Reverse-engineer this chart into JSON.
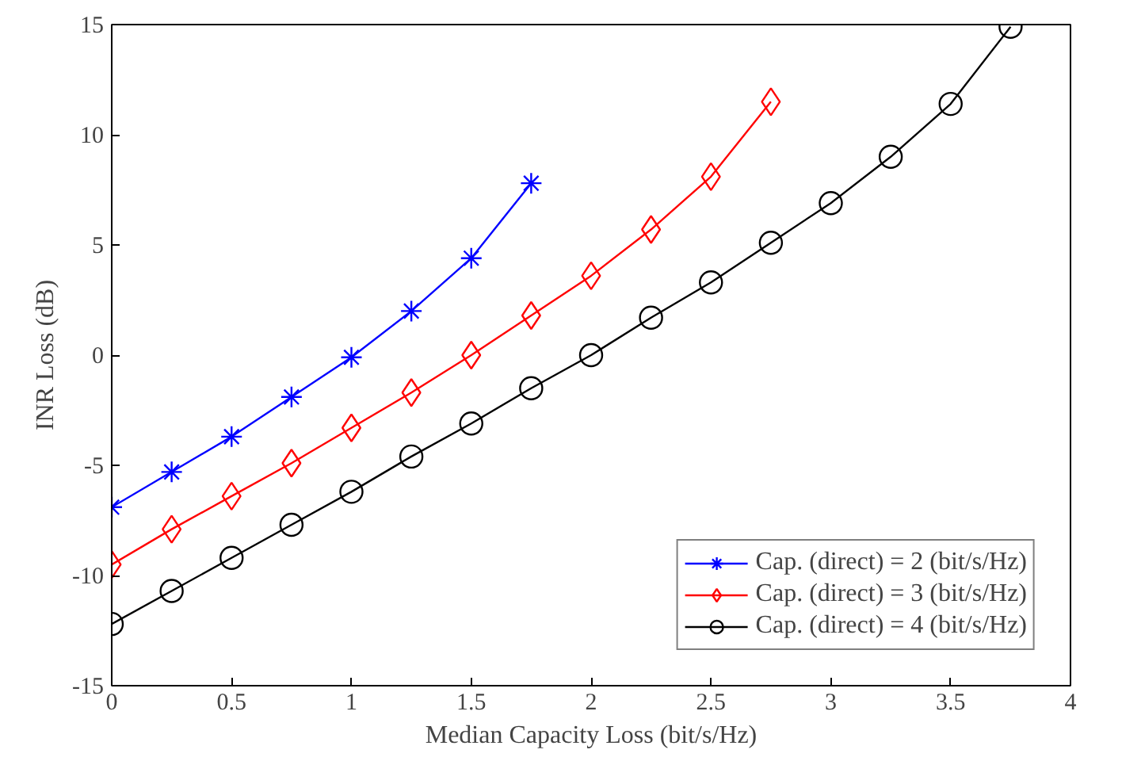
{
  "chart_data": {
    "type": "line",
    "xlabel": "Median Capacity Loss (bit/s/Hz)",
    "ylabel": "INR Loss (dB)",
    "xlim": [
      0,
      4
    ],
    "xticks": [
      0,
      0.5,
      1,
      1.5,
      2,
      2.5,
      3,
      3.5,
      4
    ],
    "ylim": [
      -15,
      15
    ],
    "yticks": [
      -15,
      -10,
      -5,
      0,
      5,
      10,
      15
    ],
    "grid": false,
    "legend": "bottom right",
    "line_style": "solid",
    "series": [
      {
        "name": "Cap. (direct) = 2 (bit/s/Hz)",
        "color": "#0000ff",
        "marker": "cross",
        "x": [
          0,
          0.25,
          0.5,
          0.75,
          1,
          1.25,
          1.5,
          1.75
        ],
        "values": [
          -6.9,
          -5.3,
          -3.7,
          -1.9,
          -0.1,
          2.0,
          4.4,
          7.8
        ]
      },
      {
        "name": "Cap. (direct) = 3 (bit/s/Hz)",
        "color": "#ff0000",
        "marker": "diamond",
        "x": [
          0,
          0.25,
          0.5,
          0.75,
          1,
          1.25,
          1.5,
          1.75,
          2,
          2.25,
          2.5,
          2.75
        ],
        "values": [
          -9.5,
          -7.9,
          -6.4,
          -4.9,
          -3.3,
          -1.7,
          0.0,
          1.8,
          3.6,
          5.7,
          8.1,
          11.5
        ]
      },
      {
        "name": "Cap. (direct) = 4 (bit/s/Hz)",
        "color": "#000000",
        "marker": "circle",
        "x": [
          0,
          0.25,
          0.5,
          0.75,
          1,
          1.25,
          1.5,
          1.75,
          2,
          2.25,
          2.5,
          2.75,
          3,
          3.25,
          3.5,
          3.75
        ],
        "values": [
          -12.2,
          -10.7,
          -9.2,
          -7.7,
          -6.2,
          -4.6,
          -3.1,
          -1.5,
          0.0,
          1.7,
          3.3,
          5.1,
          6.9,
          9.0,
          11.4,
          14.9
        ]
      }
    ]
  }
}
